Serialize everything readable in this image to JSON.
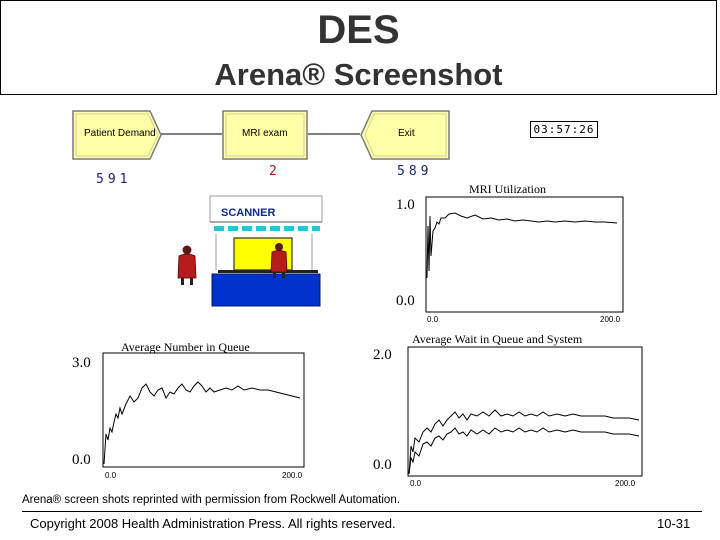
{
  "slide": {
    "title": "DES",
    "subtitle": "Arena® Screenshot",
    "credit": "Arena® screen shots reprinted with permission from Rockwell Automation.",
    "copyright": "Copyright 2008 Health Administration Press. All rights reserved.",
    "page_number": "10-31"
  },
  "arena": {
    "clock": "03:57:26",
    "modules": [
      {
        "label": "Patient Demand",
        "count": "591",
        "count_color": "#1a237e"
      },
      {
        "label": "MRI exam",
        "count": "2",
        "count_color": "#b71c1c"
      },
      {
        "label": "Exit",
        "count": "589",
        "count_color": "#1a237e"
      }
    ],
    "scanner_label": "SCANNER",
    "icons": [
      "patient-icon",
      "scanner-icon",
      "clock-icon"
    ]
  },
  "plots": {
    "utilization": {
      "title": "MRI Utilization",
      "ymax_label": "1.0",
      "ymin_label": "0.0",
      "xmin_label": "0.0",
      "xmax_label": "200.0"
    },
    "queue_number": {
      "title": "Average Number in Queue",
      "ymax_label": "3.0",
      "ymin_label": "0.0",
      "xmin_label": "0.0",
      "xmax_label": "200.0"
    },
    "wait": {
      "title": "Average Wait in Queue and System",
      "ymax_label": "2.0",
      "ymin_label": "0.0",
      "xmin_label": "0.0",
      "xmax_label": "200.0"
    }
  },
  "colors": {
    "module_fill": "#ffffa8",
    "scanner_blue": "#0033cc",
    "scanner_yellow": "#ffff00",
    "patient_red": "#b71c1c",
    "title_text": "#333333"
  }
}
